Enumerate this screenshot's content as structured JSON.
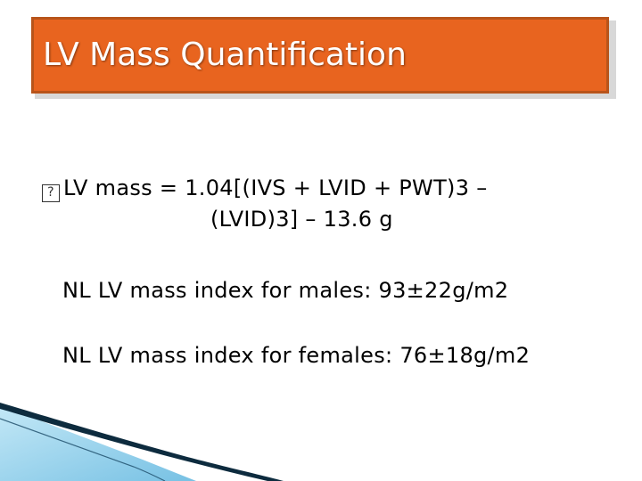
{
  "slide": {
    "title": "LV Mass Quantification",
    "bullet_symbol": "?",
    "formula_line1": "LV mass = 1.04[(IVS + LVID + PWT)3 –",
    "formula_line2": "(LVID)3] – 13.6 g",
    "note_males": "NL LV mass index for males:  93±22g/m2",
    "note_females": "NL LV mass index for females: 76±18g/m2"
  },
  "colors": {
    "title_background": "#e8641f",
    "title_border": "#b8541a",
    "title_text": "#ffffff",
    "body_text": "#000000",
    "accent_wave_dark": "#0d2b3e",
    "accent_wave_light": "#8fd0ec"
  }
}
